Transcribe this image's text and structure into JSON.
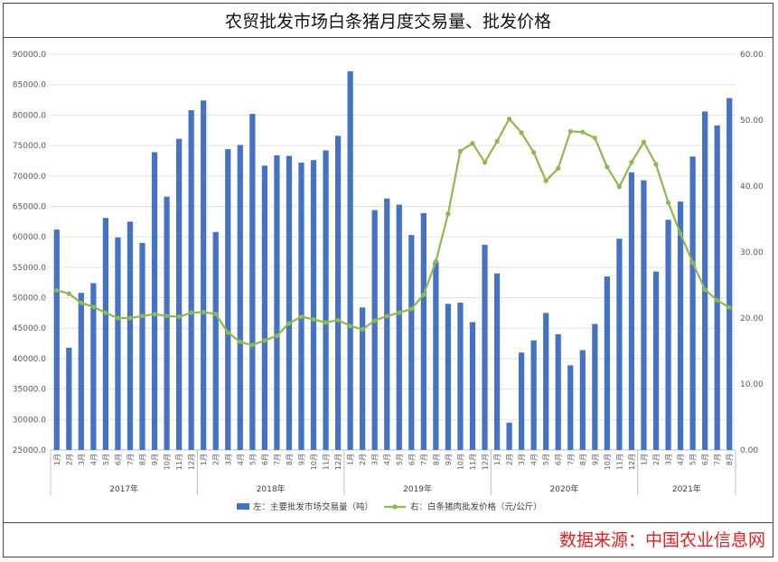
{
  "title": "农贸批发市场白条猪月度交易量、批发价格",
  "source": "数据来源：中国农业信息网",
  "chart_data": {
    "type": "bar+line",
    "years": [
      {
        "label": "2017年",
        "months": 12
      },
      {
        "label": "2018年",
        "months": 12
      },
      {
        "label": "2019年",
        "months": 12
      },
      {
        "label": "2020年",
        "months": 12
      },
      {
        "label": "2021年",
        "months": 8
      }
    ],
    "month_labels": [
      "1月",
      "2月",
      "3月",
      "4月",
      "5月",
      "6月",
      "7月",
      "8月",
      "9月",
      "10月",
      "11月",
      "12月"
    ],
    "left_axis": {
      "min": 25000,
      "max": 90000,
      "step": 5000,
      "ticks": [
        "25000.0",
        "30000.0",
        "35000.0",
        "40000.0",
        "45000.0",
        "50000.0",
        "55000.0",
        "60000.0",
        "65000.0",
        "70000.0",
        "75000.0",
        "80000.0",
        "85000.0",
        "90000.0"
      ]
    },
    "right_axis": {
      "min": 0,
      "max": 60,
      "step": 10,
      "ticks": [
        "0.00",
        "10.00",
        "20.00",
        "30.00",
        "40.00",
        "50.00",
        "60.00"
      ]
    },
    "series": [
      {
        "name": "左：主要批发市场交易量（吨）",
        "type": "bar",
        "axis": "left",
        "color": "#4472c4",
        "values": [
          61200,
          41800,
          50800,
          52400,
          63100,
          59900,
          62500,
          59000,
          73900,
          66600,
          76100,
          80800,
          82400,
          60800,
          74400,
          75100,
          80200,
          71700,
          73400,
          73300,
          72200,
          72600,
          74200,
          76600,
          87200,
          48400,
          64400,
          66300,
          65300,
          60300,
          63900,
          55900,
          49000,
          49200,
          46000,
          58700,
          54000,
          29500,
          41000,
          43000,
          47500,
          44000,
          38900,
          41400,
          45700,
          53500,
          59700,
          70600,
          69300,
          54300,
          62800,
          65800,
          73200,
          80600,
          78300,
          82800
        ]
      },
      {
        "name": "右：白条猪肉批发价格（元/公斤）",
        "type": "line",
        "axis": "right",
        "color": "#8fb94e",
        "values": [
          24.2,
          23.7,
          22.3,
          21.7,
          20.8,
          20.0,
          20.0,
          20.3,
          20.6,
          20.3,
          20.2,
          20.8,
          20.9,
          20.6,
          17.8,
          16.4,
          15.9,
          16.6,
          17.3,
          19.2,
          20.2,
          19.8,
          19.3,
          19.7,
          18.8,
          18.3,
          19.6,
          20.3,
          20.8,
          21.4,
          23.5,
          28.6,
          35.8,
          45.3,
          46.5,
          43.6,
          46.8,
          50.2,
          48.1,
          45.1,
          40.8,
          42.7,
          48.3,
          48.2,
          47.3,
          42.9,
          39.9,
          43.6,
          46.7,
          43.3,
          37.5,
          32.8,
          28.4,
          24.3,
          22.7,
          21.6
        ]
      }
    ],
    "legend_position": "bottom-center",
    "grid": "horizontal"
  }
}
